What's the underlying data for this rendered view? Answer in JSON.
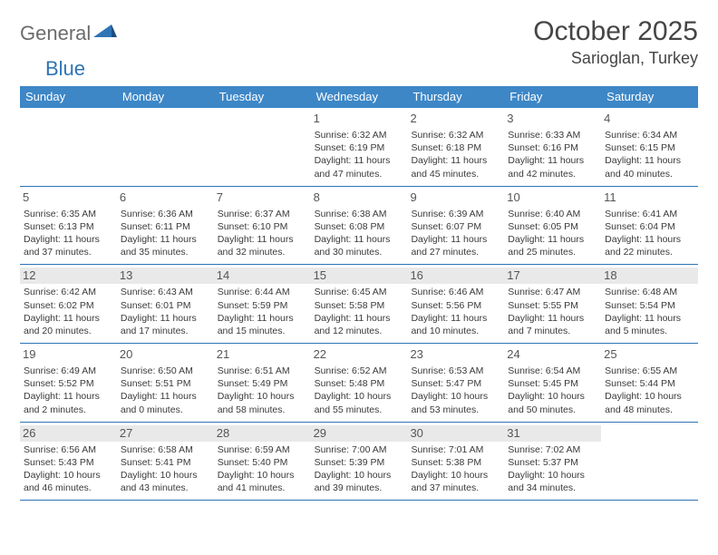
{
  "logo": {
    "word1": "General",
    "word2": "Blue"
  },
  "title": "October 2025",
  "location": "Sarioglan, Turkey",
  "colors": {
    "header_bg": "#3d87c7",
    "header_text": "#ffffff",
    "rule": "#2f74b5",
    "shade_bg": "#e9e9e9",
    "body_text": "#3a3a3a",
    "logo_gray": "#6b6b6b",
    "logo_blue": "#2f74b5"
  },
  "typography": {
    "title_fontsize": 30,
    "location_fontsize": 18,
    "weekday_fontsize": 13,
    "daynum_fontsize": 13,
    "detail_fontsize": 10.5
  },
  "weekdays": [
    "Sunday",
    "Monday",
    "Tuesday",
    "Wednesday",
    "Thursday",
    "Friday",
    "Saturday"
  ],
  "weeks": [
    [
      {
        "num": "",
        "lines": []
      },
      {
        "num": "",
        "lines": []
      },
      {
        "num": "",
        "lines": []
      },
      {
        "num": "1",
        "lines": [
          "Sunrise: 6:32 AM",
          "Sunset: 6:19 PM",
          "Daylight: 11 hours and 47 minutes."
        ]
      },
      {
        "num": "2",
        "lines": [
          "Sunrise: 6:32 AM",
          "Sunset: 6:18 PM",
          "Daylight: 11 hours and 45 minutes."
        ]
      },
      {
        "num": "3",
        "lines": [
          "Sunrise: 6:33 AM",
          "Sunset: 6:16 PM",
          "Daylight: 11 hours and 42 minutes."
        ]
      },
      {
        "num": "4",
        "lines": [
          "Sunrise: 6:34 AM",
          "Sunset: 6:15 PM",
          "Daylight: 11 hours and 40 minutes."
        ]
      }
    ],
    [
      {
        "num": "5",
        "lines": [
          "Sunrise: 6:35 AM",
          "Sunset: 6:13 PM",
          "Daylight: 11 hours and 37 minutes."
        ]
      },
      {
        "num": "6",
        "lines": [
          "Sunrise: 6:36 AM",
          "Sunset: 6:11 PM",
          "Daylight: 11 hours and 35 minutes."
        ]
      },
      {
        "num": "7",
        "lines": [
          "Sunrise: 6:37 AM",
          "Sunset: 6:10 PM",
          "Daylight: 11 hours and 32 minutes."
        ]
      },
      {
        "num": "8",
        "lines": [
          "Sunrise: 6:38 AM",
          "Sunset: 6:08 PM",
          "Daylight: 11 hours and 30 minutes."
        ]
      },
      {
        "num": "9",
        "lines": [
          "Sunrise: 6:39 AM",
          "Sunset: 6:07 PM",
          "Daylight: 11 hours and 27 minutes."
        ]
      },
      {
        "num": "10",
        "lines": [
          "Sunrise: 6:40 AM",
          "Sunset: 6:05 PM",
          "Daylight: 11 hours and 25 minutes."
        ]
      },
      {
        "num": "11",
        "lines": [
          "Sunrise: 6:41 AM",
          "Sunset: 6:04 PM",
          "Daylight: 11 hours and 22 minutes."
        ]
      }
    ],
    [
      {
        "num": "12",
        "lines": [
          "Sunrise: 6:42 AM",
          "Sunset: 6:02 PM",
          "Daylight: 11 hours and 20 minutes."
        ]
      },
      {
        "num": "13",
        "lines": [
          "Sunrise: 6:43 AM",
          "Sunset: 6:01 PM",
          "Daylight: 11 hours and 17 minutes."
        ]
      },
      {
        "num": "14",
        "lines": [
          "Sunrise: 6:44 AM",
          "Sunset: 5:59 PM",
          "Daylight: 11 hours and 15 minutes."
        ]
      },
      {
        "num": "15",
        "lines": [
          "Sunrise: 6:45 AM",
          "Sunset: 5:58 PM",
          "Daylight: 11 hours and 12 minutes."
        ]
      },
      {
        "num": "16",
        "lines": [
          "Sunrise: 6:46 AM",
          "Sunset: 5:56 PM",
          "Daylight: 11 hours and 10 minutes."
        ]
      },
      {
        "num": "17",
        "lines": [
          "Sunrise: 6:47 AM",
          "Sunset: 5:55 PM",
          "Daylight: 11 hours and 7 minutes."
        ]
      },
      {
        "num": "18",
        "lines": [
          "Sunrise: 6:48 AM",
          "Sunset: 5:54 PM",
          "Daylight: 11 hours and 5 minutes."
        ]
      }
    ],
    [
      {
        "num": "19",
        "lines": [
          "Sunrise: 6:49 AM",
          "Sunset: 5:52 PM",
          "Daylight: 11 hours and 2 minutes."
        ]
      },
      {
        "num": "20",
        "lines": [
          "Sunrise: 6:50 AM",
          "Sunset: 5:51 PM",
          "Daylight: 11 hours and 0 minutes."
        ]
      },
      {
        "num": "21",
        "lines": [
          "Sunrise: 6:51 AM",
          "Sunset: 5:49 PM",
          "Daylight: 10 hours and 58 minutes."
        ]
      },
      {
        "num": "22",
        "lines": [
          "Sunrise: 6:52 AM",
          "Sunset: 5:48 PM",
          "Daylight: 10 hours and 55 minutes."
        ]
      },
      {
        "num": "23",
        "lines": [
          "Sunrise: 6:53 AM",
          "Sunset: 5:47 PM",
          "Daylight: 10 hours and 53 minutes."
        ]
      },
      {
        "num": "24",
        "lines": [
          "Sunrise: 6:54 AM",
          "Sunset: 5:45 PM",
          "Daylight: 10 hours and 50 minutes."
        ]
      },
      {
        "num": "25",
        "lines": [
          "Sunrise: 6:55 AM",
          "Sunset: 5:44 PM",
          "Daylight: 10 hours and 48 minutes."
        ]
      }
    ],
    [
      {
        "num": "26",
        "lines": [
          "Sunrise: 6:56 AM",
          "Sunset: 5:43 PM",
          "Daylight: 10 hours and 46 minutes."
        ]
      },
      {
        "num": "27",
        "lines": [
          "Sunrise: 6:58 AM",
          "Sunset: 5:41 PM",
          "Daylight: 10 hours and 43 minutes."
        ]
      },
      {
        "num": "28",
        "lines": [
          "Sunrise: 6:59 AM",
          "Sunset: 5:40 PM",
          "Daylight: 10 hours and 41 minutes."
        ]
      },
      {
        "num": "29",
        "lines": [
          "Sunrise: 7:00 AM",
          "Sunset: 5:39 PM",
          "Daylight: 10 hours and 39 minutes."
        ]
      },
      {
        "num": "30",
        "lines": [
          "Sunrise: 7:01 AM",
          "Sunset: 5:38 PM",
          "Daylight: 10 hours and 37 minutes."
        ]
      },
      {
        "num": "31",
        "lines": [
          "Sunrise: 7:02 AM",
          "Sunset: 5:37 PM",
          "Daylight: 10 hours and 34 minutes."
        ]
      },
      {
        "num": "",
        "lines": []
      }
    ]
  ],
  "shaded_rows": [
    2,
    4
  ]
}
